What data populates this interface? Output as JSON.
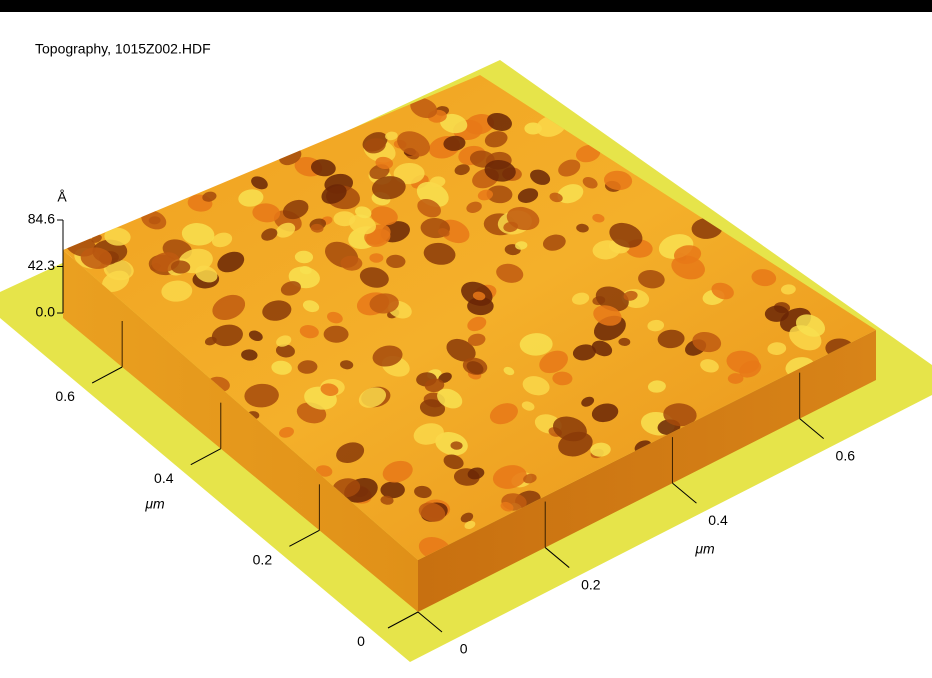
{
  "chart_data": {
    "type": "surface",
    "title": "Topography,  1015Z002.HDF",
    "zlabel": "Å",
    "zlim": [
      0,
      84.6
    ],
    "zticks": [
      {
        "value": 0,
        "label": "0.0"
      },
      42.3,
      84.6
    ],
    "xlabel": "μm",
    "xlim": [
      0,
      0.72
    ],
    "xticks": [
      0,
      0.2,
      0.4,
      0.6
    ],
    "ylabel": "μm",
    "ylim": [
      0,
      0.72
    ],
    "yticks": [
      0,
      0.2,
      0.4,
      0.6
    ]
  }
}
